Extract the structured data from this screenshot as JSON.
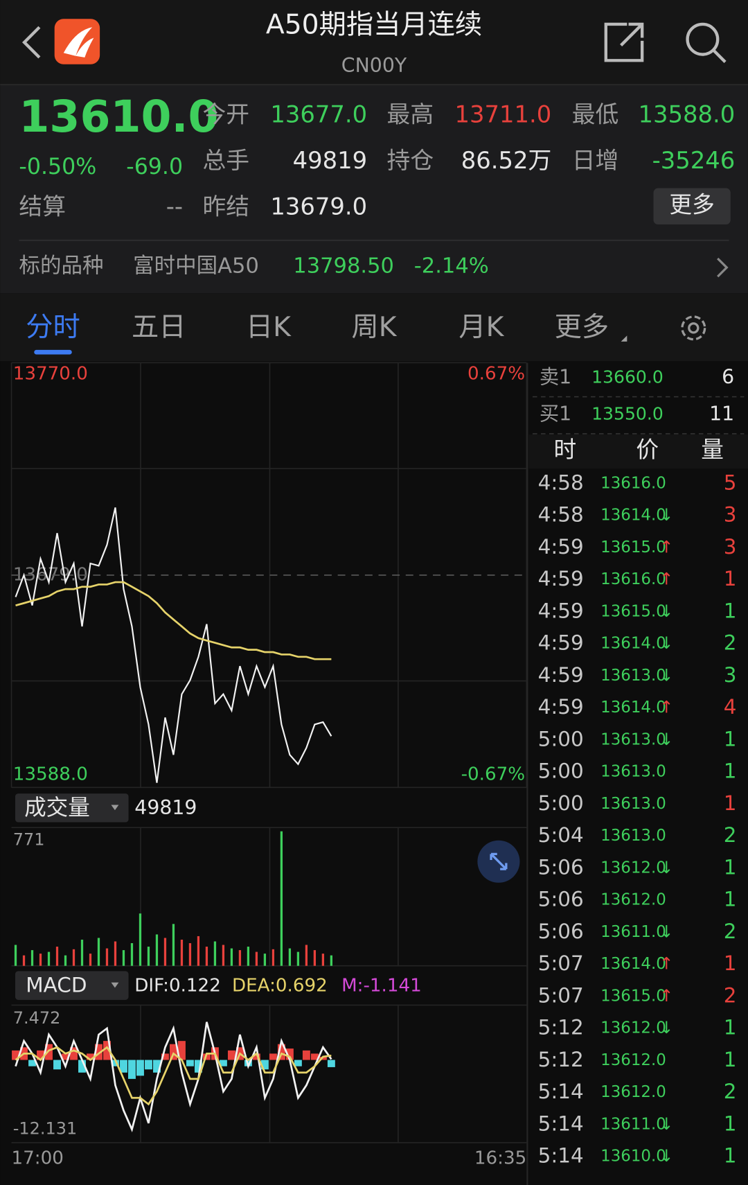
{
  "header": {
    "title": "A50期指当月连续",
    "code": "CN00Y"
  },
  "quote": {
    "price": "13610.0",
    "change_pct": "-0.50%",
    "change": "-69.0",
    "color": "#3ecf5c",
    "fields": [
      {
        "label": "今开",
        "value": "13677.0",
        "color": "#3ecf5c"
      },
      {
        "label": "最高",
        "value": "13711.0",
        "color": "#e8413c"
      },
      {
        "label": "最低",
        "value": "13588.0",
        "color": "#3ecf5c"
      },
      {
        "label": "总手",
        "value": "49819",
        "color": "#e6e6e6"
      },
      {
        "label": "持仓",
        "value": "86.52万",
        "color": "#e6e6e6"
      },
      {
        "label": "日增",
        "value": "-35246",
        "color": "#3ecf5c"
      },
      {
        "label": "结算",
        "value": "--",
        "color": "#9a9a9a"
      },
      {
        "label": "昨结",
        "value": "13679.0",
        "color": "#e6e6e6"
      }
    ],
    "more_button": "更多"
  },
  "underlying": {
    "label": "标的品种",
    "name": "富时中国A50",
    "price": "13798.50",
    "change_pct": "-2.14%",
    "color": "#3ecf5c"
  },
  "tabs": {
    "items": [
      "分时",
      "五日",
      "日K",
      "周K",
      "月K",
      "更多"
    ],
    "active": 0
  },
  "chart_data": [
    {
      "type": "line",
      "categories": [
        "17:00",
        null,
        null,
        null,
        null,
        null,
        null,
        null,
        null,
        null,
        null,
        null,
        null,
        null,
        null,
        null,
        null,
        null,
        null,
        null,
        null,
        null,
        null,
        null,
        null,
        null,
        null,
        null,
        null,
        null,
        null,
        null,
        null,
        null,
        null,
        null,
        null,
        null,
        null,
        null,
        null,
        null,
        null,
        null,
        null,
        null,
        null,
        null,
        null,
        null,
        null,
        null,
        null,
        null,
        null,
        null,
        null,
        null,
        null,
        null,
        null,
        "16:35"
      ],
      "ylim": [
        13588.0,
        13770.0
      ],
      "yticks": [
        {
          "value": 13770.0,
          "label": "13770.0"
        },
        {
          "value": 13679.0,
          "label": "13679.0"
        },
        {
          "value": 13588.0,
          "label": "13588.0"
        }
      ],
      "y2lim": [
        -0.67,
        0.67
      ],
      "y2ticks": [
        {
          "value": 0.67,
          "label": "0.67%"
        },
        {
          "value": -0.67,
          "label": "-0.67%"
        }
      ],
      "series": [
        {
          "color": "#f2f2f2",
          "values": [
            13669.6,
            13679,
            13666,
            13686,
            13676,
            13697,
            13676,
            13684,
            13657,
            13684,
            13683,
            13692,
            13708,
            13673,
            13657,
            13631,
            13615,
            13590,
            13618,
            13602,
            13628,
            13634,
            13644,
            13658,
            13624,
            13628,
            13621,
            13640,
            13628,
            13640,
            13631,
            13640,
            13615,
            13602,
            13598,
            13605,
            13615,
            13616,
            13610,
            null,
            null,
            null,
            null,
            null,
            null,
            null,
            null,
            null,
            null,
            null,
            null,
            null,
            null,
            null,
            null,
            null,
            null,
            null,
            null,
            null,
            null,
            null
          ]
        },
        {
          "color": "#e6d36a",
          "values": [
            13666,
            13667,
            13668,
            13669,
            13670,
            13672,
            13673,
            13673,
            13674,
            13674,
            13675,
            13675,
            13676,
            13676,
            13674,
            13672,
            13670,
            13667,
            13663,
            13660,
            13657,
            13654,
            13652,
            13651,
            13650,
            13649,
            13648,
            13648,
            13647,
            13647,
            13646,
            13646,
            13645,
            13645,
            13644,
            13644,
            13643,
            13643,
            13643,
            null,
            null,
            null,
            null,
            null,
            null,
            null,
            null,
            null,
            null,
            null,
            null,
            null,
            null,
            null,
            null,
            null,
            null,
            null,
            null,
            null,
            null,
            null
          ]
        }
      ]
    },
    {
      "type": "bar",
      "selector": "成交量",
      "total": "49819",
      "ylim": [
        0,
        771
      ],
      "yticks": [
        771
      ],
      "up_color": "#e8413c",
      "down_color": "#3ecf5c",
      "values": [
        120,
        60,
        90,
        70,
        80,
        110,
        60,
        95,
        150,
        70,
        160,
        100,
        140,
        90,
        130,
        300,
        110,
        180,
        160,
        240,
        150,
        130,
        170,
        110,
        140,
        120,
        100,
        90,
        110,
        80,
        70,
        95,
        771,
        100,
        80,
        120,
        90,
        70,
        60,
        null,
        null,
        null,
        null,
        null,
        null,
        null,
        null,
        null,
        null,
        null,
        null,
        null,
        null,
        null,
        null,
        null,
        null,
        null,
        null,
        null,
        null,
        null
      ]
    },
    {
      "type": "macd",
      "selector": "MACD",
      "ylim": [
        -12.131,
        7.472
      ],
      "yticks": [
        7.472,
        -12.131
      ],
      "legend": [
        {
          "label": "DIF:0.122",
          "color": "#e6e6e6"
        },
        {
          "label": "DEA:0.692",
          "color": "#e6d36a"
        },
        {
          "label": "M:-1.141",
          "color": "#d44ad8"
        }
      ],
      "hist_up_color": "#e8413c",
      "hist_down_color": "#4fd6e0",
      "hist": [
        1.5,
        2,
        -1,
        1.5,
        2.5,
        -1.5,
        1,
        2,
        -2,
        1,
        2.5,
        3,
        -1,
        -2,
        -3,
        -2.5,
        -1.5,
        -2,
        1,
        2.5,
        3,
        -1,
        -2,
        1,
        2,
        -1,
        1.5,
        2,
        -1,
        1,
        -1.5,
        1,
        2.5,
        1.8,
        -1,
        1.5,
        1,
        0.5,
        -1.141,
        null,
        null,
        null,
        null,
        null,
        null,
        null,
        null,
        null,
        null,
        null,
        null,
        null,
        null,
        null,
        null,
        null,
        null,
        null,
        null,
        null,
        null,
        null
      ],
      "series": [
        {
          "color": "#f2f2f2",
          "values": [
            -1,
            3,
            1,
            -2,
            4,
            2,
            -1,
            3,
            0,
            -3,
            4,
            5,
            -4,
            -8,
            -11,
            -6,
            -10,
            -3,
            2,
            5,
            -2,
            -7,
            -3,
            6,
            1,
            -5,
            -3,
            4,
            -1,
            2,
            -6,
            -3,
            3,
            0,
            -6,
            -4,
            -1,
            2,
            0.122,
            null,
            null,
            null,
            null,
            null,
            null,
            null,
            null,
            null,
            null,
            null,
            null,
            null,
            null,
            null,
            null,
            null,
            null,
            null,
            null,
            null,
            null,
            null
          ]
        },
        {
          "color": "#e6d36a",
          "values": [
            0,
            1,
            1,
            0,
            1.5,
            2,
            1,
            1.5,
            1,
            0,
            1,
            2,
            0,
            -3,
            -6,
            -6,
            -7,
            -5,
            -2,
            1,
            0,
            -3,
            -3,
            1,
            1,
            -2,
            -2,
            1,
            0,
            1,
            -2,
            -2,
            1,
            0.5,
            -2,
            -2,
            -1,
            0.5,
            0.692,
            null,
            null,
            null,
            null,
            null,
            null,
            null,
            null,
            null,
            null,
            null,
            null,
            null,
            null,
            null,
            null,
            null,
            null,
            null,
            null,
            null,
            null,
            null
          ]
        }
      ]
    }
  ],
  "order_book": [
    {
      "label": "卖1",
      "price": "13660.0",
      "qty": "6"
    },
    {
      "label": "买1",
      "price": "13550.0",
      "qty": "11"
    }
  ],
  "trades": {
    "headers": [
      "时",
      "价",
      "量"
    ],
    "rows": [
      {
        "time": "4:58",
        "price": "13616.0",
        "qty": "5",
        "color": "#e8413c"
      },
      {
        "time": "4:58",
        "price": "13614.0",
        "arrow": "↓",
        "qty": "3",
        "color": "#e8413c"
      },
      {
        "time": "4:59",
        "price": "13615.0",
        "arrow": "↑",
        "qty": "3",
        "color": "#e8413c"
      },
      {
        "time": "4:59",
        "price": "13616.0",
        "arrow": "↑",
        "qty": "1",
        "color": "#e8413c"
      },
      {
        "time": "4:59",
        "price": "13615.0",
        "arrow": "↓",
        "qty": "1",
        "color": "#3ecf5c"
      },
      {
        "time": "4:59",
        "price": "13614.0",
        "arrow": "↓",
        "qty": "2",
        "color": "#3ecf5c"
      },
      {
        "time": "4:59",
        "price": "13613.0",
        "arrow": "↓",
        "qty": "3",
        "color": "#3ecf5c"
      },
      {
        "time": "4:59",
        "price": "13614.0",
        "arrow": "↑",
        "qty": "4",
        "color": "#e8413c"
      },
      {
        "time": "5:00",
        "price": "13613.0",
        "arrow": "↓",
        "qty": "1",
        "color": "#3ecf5c"
      },
      {
        "time": "5:00",
        "price": "13613.0",
        "qty": "1",
        "color": "#3ecf5c"
      },
      {
        "time": "5:00",
        "price": "13613.0",
        "qty": "1",
        "color": "#e8413c"
      },
      {
        "time": "5:04",
        "price": "13613.0",
        "qty": "2",
        "color": "#3ecf5c"
      },
      {
        "time": "5:06",
        "price": "13612.0",
        "arrow": "↓",
        "qty": "1",
        "color": "#3ecf5c"
      },
      {
        "time": "5:06",
        "price": "13612.0",
        "qty": "1",
        "color": "#3ecf5c"
      },
      {
        "time": "5:06",
        "price": "13611.0",
        "arrow": "↓",
        "qty": "2",
        "color": "#3ecf5c"
      },
      {
        "time": "5:07",
        "price": "13614.0",
        "arrow": "↑",
        "qty": "1",
        "color": "#e8413c"
      },
      {
        "time": "5:07",
        "price": "13615.0",
        "arrow": "↑",
        "qty": "2",
        "color": "#e8413c"
      },
      {
        "time": "5:12",
        "price": "13612.0",
        "arrow": "↓",
        "qty": "1",
        "color": "#3ecf5c"
      },
      {
        "time": "5:12",
        "price": "13612.0",
        "qty": "1",
        "color": "#3ecf5c"
      },
      {
        "time": "5:14",
        "price": "13612.0",
        "qty": "2",
        "color": "#3ecf5c"
      },
      {
        "time": "5:14",
        "price": "13611.0",
        "arrow": "↓",
        "qty": "1",
        "color": "#3ecf5c"
      },
      {
        "time": "5:14",
        "price": "13610.0",
        "arrow": "↓",
        "qty": "1",
        "color": "#3ecf5c"
      }
    ]
  }
}
